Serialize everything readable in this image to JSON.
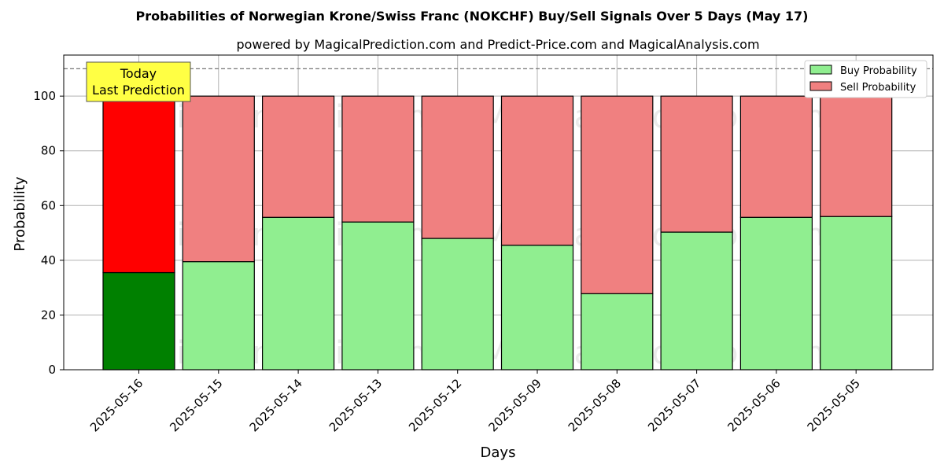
{
  "chart_data": {
    "type": "bar",
    "stacked": true,
    "title": "Probabilities of Norwegian Krone/Swiss Franc (NOKCHF) Buy/Sell Signals Over 5 Days (May 17)",
    "subtitle": "powered by MagicalPrediction.com and Predict-Price.com and MagicalAnalysis.com",
    "xlabel": "Days",
    "ylabel": "Probability",
    "ylim": [
      0,
      115
    ],
    "yticks": [
      0,
      20,
      40,
      60,
      80,
      100
    ],
    "grid": true,
    "legend_placement": "top-right",
    "threshold_line": 110,
    "categories": [
      "2025-05-16",
      "2025-05-15",
      "2025-05-14",
      "2025-05-13",
      "2025-05-12",
      "2025-05-09",
      "2025-05-08",
      "2025-05-07",
      "2025-05-06",
      "2025-05-05"
    ],
    "series": [
      {
        "name": "Buy Probability",
        "color": "#90ee90",
        "highlight_color": "#008000",
        "values": [
          35.5,
          39.5,
          55.7,
          54.0,
          48.0,
          45.5,
          27.8,
          50.3,
          55.7,
          56.0
        ]
      },
      {
        "name": "Sell Probability",
        "color": "#f08080",
        "highlight_color": "#ff0000",
        "values": [
          64.5,
          60.5,
          44.3,
          46.0,
          52.0,
          54.5,
          72.2,
          49.7,
          44.3,
          44.0
        ]
      }
    ],
    "highlight_index": 0,
    "annotation": {
      "line1": "Today",
      "line2": "Last Prediction",
      "background": "#ffff44"
    },
    "watermarks": [
      "MagicalAnalysis.com",
      "MagicalPrediction.com"
    ]
  }
}
